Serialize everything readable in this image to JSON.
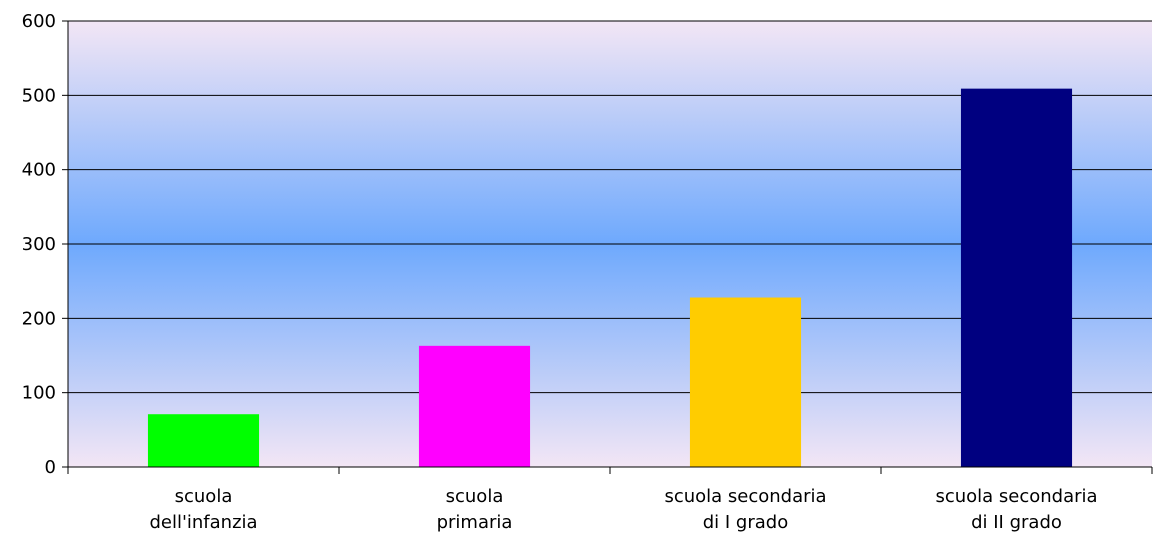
{
  "chart_data": {
    "type": "bar",
    "categories": [
      [
        "scuola",
        "dell'infanzia"
      ],
      [
        "scuola",
        "primaria"
      ],
      [
        "scuola secondaria",
        "di I grado"
      ],
      [
        "scuola secondaria",
        "di II grado"
      ]
    ],
    "values": [
      71,
      163,
      228,
      509
    ],
    "bar_colors": [
      "#00FF00",
      "#FF00FF",
      "#FFCC00",
      "#000080"
    ],
    "ylim": [
      0,
      600
    ],
    "yticks": [
      "0",
      "100",
      "200",
      "300",
      "400",
      "500",
      "600"
    ],
    "title": "",
    "xlabel": "",
    "ylabel": "",
    "grid": true,
    "legend": "none",
    "background_gradient": [
      "#F3E6F5",
      "#6EA9FD",
      "#F3E6F5"
    ]
  }
}
